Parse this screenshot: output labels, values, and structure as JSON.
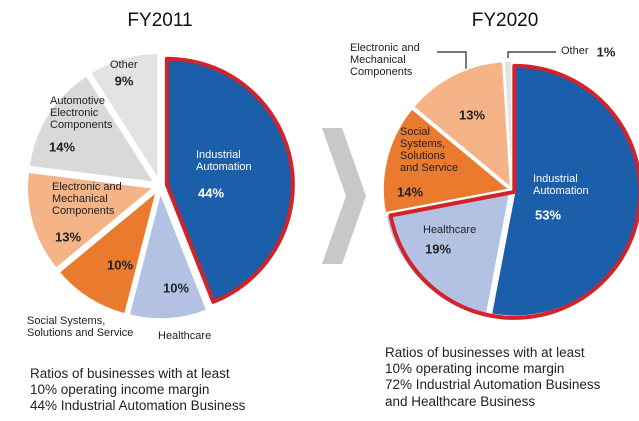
{
  "chart_data": [
    {
      "type": "pie",
      "title": "FY2011",
      "categories": [
        "Industrial Automation",
        "Healthcare",
        "Social Systems, Solutions and Service",
        "Electronic and Mechanical Components",
        "Automotive Electronic Components",
        "Other"
      ],
      "values": [
        44,
        10,
        10,
        13,
        14,
        9
      ],
      "value_labels": [
        "44%",
        "10%",
        "10%",
        "13%",
        "14%",
        "9%"
      ],
      "colors": [
        "#1b5faa",
        "#b3c2e3",
        "#ea7a2e",
        "#f5b487",
        "#d9d9d9",
        "#e3e3e3"
      ],
      "highlight": [
        true,
        false,
        false,
        false,
        false,
        false
      ],
      "caption": [
        "Ratios of businesses with at least",
        "10% operating income margin",
        "44% Industrial Automation Business"
      ]
    },
    {
      "type": "pie",
      "title": "FY2020",
      "categories": [
        "Industrial Automation",
        "Healthcare",
        "Social Systems, Solutions and Service",
        "Electronic and Mechanical Components",
        "Other"
      ],
      "values": [
        53,
        19,
        14,
        13,
        1
      ],
      "value_labels": [
        "53%",
        "19%",
        "14%",
        "13%",
        "1%"
      ],
      "colors": [
        "#1b5faa",
        "#b3c2e3",
        "#ea7a2e",
        "#f5b487",
        "#e3e3e3"
      ],
      "highlight": [
        true,
        true,
        false,
        false,
        false
      ],
      "caption": [
        "Ratios of businesses with at least",
        "10% operating income margin",
        "72% Industrial Automation Business",
        "and Healthcare Business"
      ]
    }
  ]
}
